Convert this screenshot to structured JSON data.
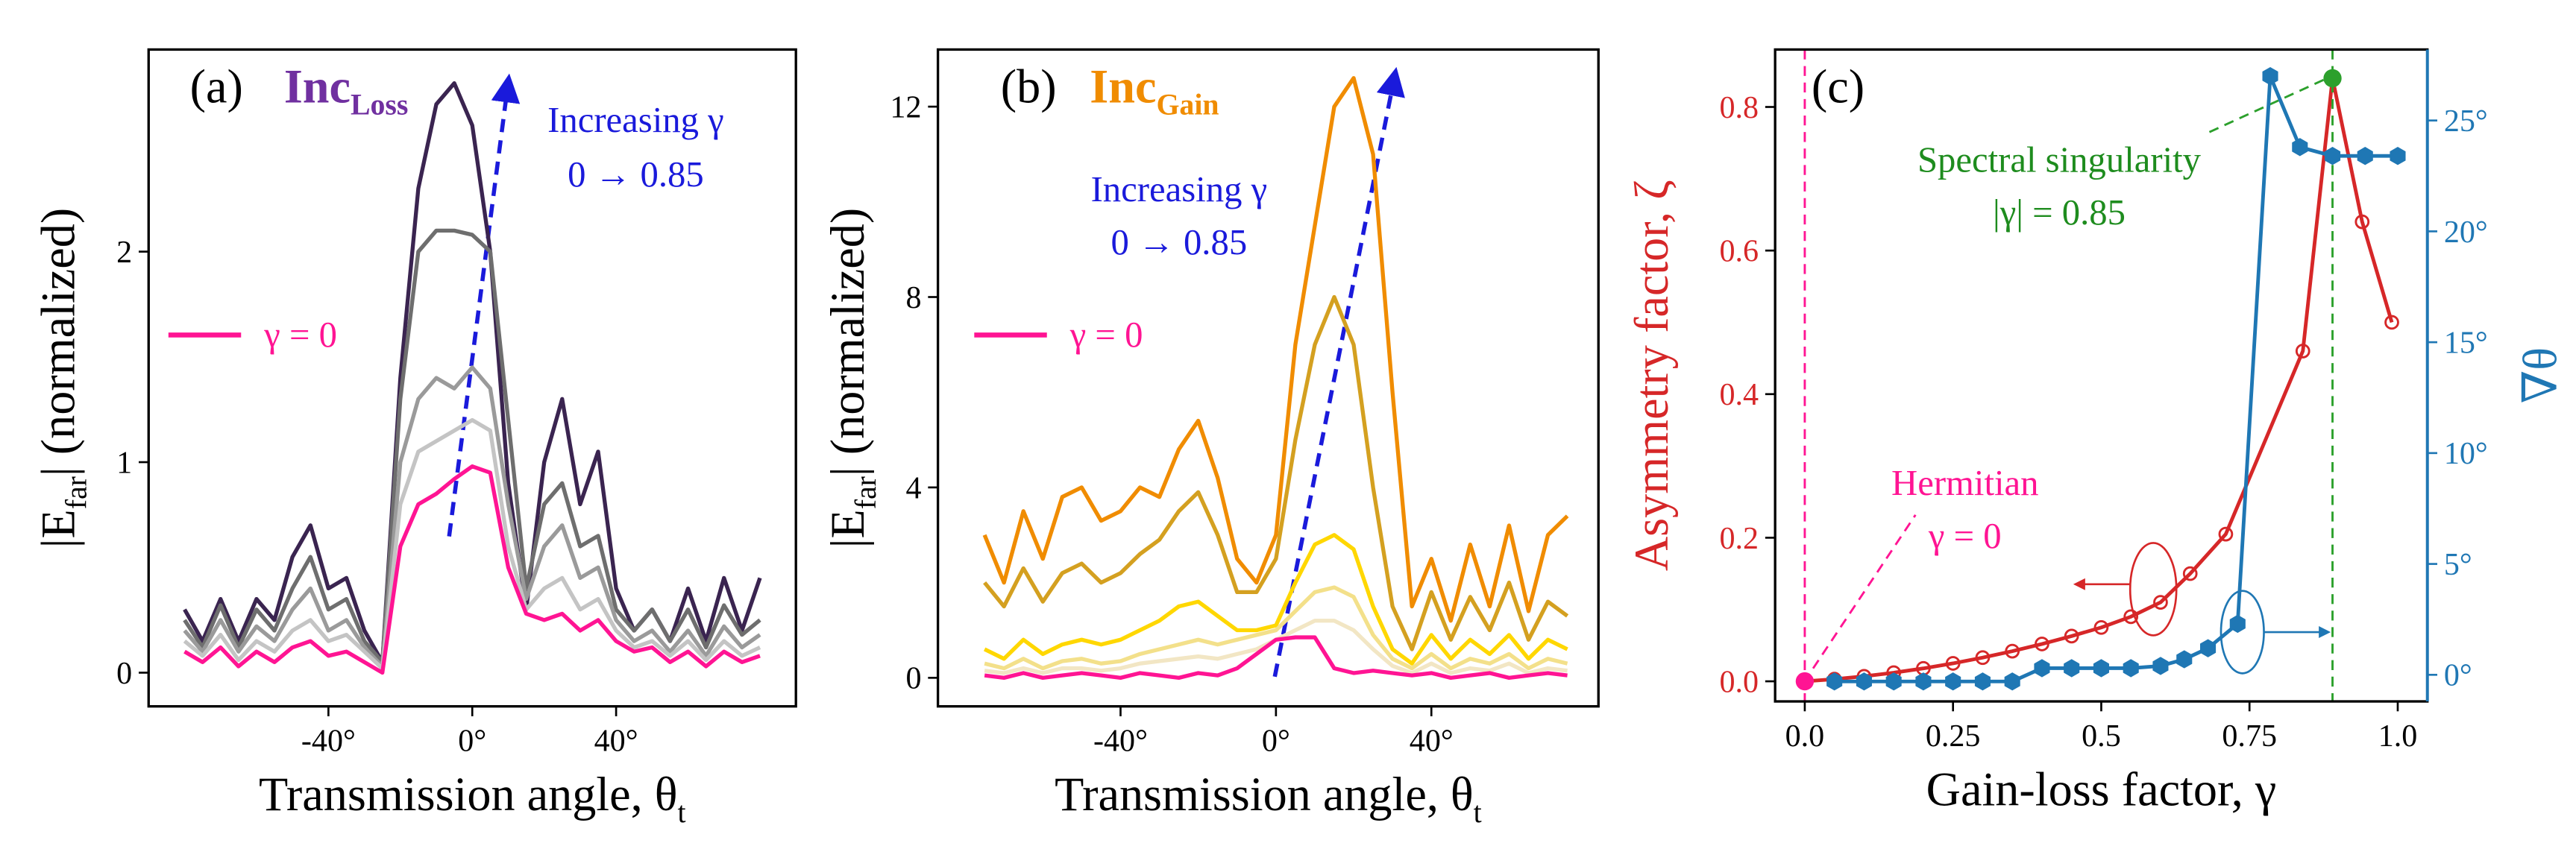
{
  "chart_data": [
    {
      "type": "line",
      "label": "(a)",
      "title": {
        "text": "Inc",
        "sub": "Loss"
      },
      "title_color": "#7030a0",
      "xlabel": {
        "text": "Transmission angle, θ",
        "sub": "t"
      },
      "ylabel": {
        "text": "|E",
        "sub": "far",
        "after": "| (normalized)"
      },
      "annotations": [
        {
          "text": "Increasing γ",
          "color": "#1a1adb"
        },
        {
          "text": "0 → 0.85",
          "color": "#1a1adb"
        }
      ],
      "xlim": [
        -90,
        90
      ],
      "ylim": [
        -0.16,
        2.96
      ],
      "xticks": [
        {
          "value": -40,
          "label": "-40°"
        },
        {
          "value": 0,
          "label": "0°"
        },
        {
          "value": 40,
          "label": "40°"
        }
      ],
      "yticks": [
        0,
        1,
        2
      ],
      "x": [
        -80,
        -75,
        -70,
        -65,
        -60,
        -55,
        -50,
        -45,
        -40,
        -35,
        -30,
        -25,
        -20,
        -15,
        -10,
        -5,
        0,
        5,
        10,
        15,
        20,
        25,
        30,
        35,
        40,
        45,
        50,
        55,
        60,
        65,
        70,
        75,
        80
      ],
      "series": [
        {
          "color": "#3a2450",
          "values": [
            0.3,
            0.15,
            0.35,
            0.15,
            0.35,
            0.25,
            0.55,
            0.7,
            0.4,
            0.45,
            0.2,
            0.05,
            1.4,
            2.3,
            2.7,
            2.8,
            2.6,
            2.0,
            0.9,
            0.3,
            1.0,
            1.3,
            0.8,
            1.05,
            0.4,
            0.2,
            0.3,
            0.15,
            0.4,
            0.15,
            0.45,
            0.2,
            0.45
          ]
        },
        {
          "color": "#6e6e6e",
          "values": [
            0.25,
            0.12,
            0.32,
            0.12,
            0.3,
            0.2,
            0.4,
            0.55,
            0.3,
            0.35,
            0.15,
            0.05,
            1.3,
            2.0,
            2.1,
            2.1,
            2.08,
            2.0,
            1.2,
            0.4,
            0.8,
            0.9,
            0.6,
            0.65,
            0.3,
            0.2,
            0.3,
            0.15,
            0.3,
            0.12,
            0.32,
            0.18,
            0.25
          ]
        },
        {
          "color": "#9a9a9a",
          "values": [
            0.2,
            0.1,
            0.25,
            0.1,
            0.22,
            0.15,
            0.3,
            0.4,
            0.2,
            0.25,
            0.12,
            0.03,
            1.0,
            1.3,
            1.4,
            1.35,
            1.45,
            1.35,
            0.8,
            0.35,
            0.6,
            0.7,
            0.45,
            0.5,
            0.25,
            0.15,
            0.2,
            0.1,
            0.2,
            0.08,
            0.22,
            0.12,
            0.18
          ]
        },
        {
          "color": "#c4c4c4",
          "values": [
            0.15,
            0.08,
            0.18,
            0.06,
            0.15,
            0.1,
            0.2,
            0.25,
            0.15,
            0.18,
            0.1,
            0.02,
            0.8,
            1.05,
            1.1,
            1.15,
            1.2,
            1.15,
            0.6,
            0.3,
            0.4,
            0.45,
            0.3,
            0.35,
            0.2,
            0.12,
            0.15,
            0.08,
            0.15,
            0.06,
            0.15,
            0.08,
            0.12
          ]
        },
        {
          "name": "γ = 0",
          "color": "#ff1493",
          "values": [
            0.1,
            0.05,
            0.12,
            0.03,
            0.1,
            0.05,
            0.12,
            0.15,
            0.08,
            0.1,
            0.05,
            0.0,
            0.6,
            0.8,
            0.85,
            0.92,
            0.98,
            0.95,
            0.5,
            0.28,
            0.25,
            0.28,
            0.2,
            0.25,
            0.15,
            0.1,
            0.12,
            0.05,
            0.1,
            0.03,
            0.1,
            0.05,
            0.08
          ]
        }
      ]
    },
    {
      "type": "line",
      "label": "(b)",
      "title": {
        "text": "Inc",
        "sub": "Gain"
      },
      "title_color": "#f08c00",
      "xlabel": {
        "text": "Transmission angle, θ",
        "sub": "t"
      },
      "ylabel": {
        "text": "|E",
        "sub": "far",
        "after": "| (normalized)"
      },
      "annotations": [
        {
          "text": "Increasing γ",
          "color": "#1a1adb"
        },
        {
          "text": "0 → 0.85",
          "color": "#1a1adb"
        }
      ],
      "xlim": [
        -87,
        83
      ],
      "ylim": [
        -0.6,
        13.2
      ],
      "xticks": [
        {
          "value": -40,
          "label": "-40°"
        },
        {
          "value": 0,
          "label": "0°"
        },
        {
          "value": 40,
          "label": "40°"
        }
      ],
      "yticks": [
        0,
        4,
        8,
        12
      ],
      "x": [
        -75,
        -70,
        -65,
        -60,
        -55,
        -50,
        -45,
        -40,
        -35,
        -30,
        -25,
        -20,
        -15,
        -10,
        -5,
        0,
        5,
        10,
        15,
        20,
        25,
        30,
        35,
        40,
        45,
        50,
        55,
        60,
        65,
        70,
        75
      ],
      "series": [
        {
          "color": "#f08c00",
          "values": [
            3.0,
            2.0,
            3.5,
            2.5,
            3.8,
            4.0,
            3.3,
            3.5,
            4.0,
            3.8,
            4.8,
            5.4,
            4.2,
            2.5,
            2.0,
            3.0,
            7.0,
            9.5,
            12.0,
            12.6,
            11.0,
            6.0,
            1.5,
            2.5,
            1.2,
            2.8,
            1.5,
            3.2,
            1.4,
            3.0,
            3.4
          ]
        },
        {
          "color": "#d4a020",
          "values": [
            2.0,
            1.5,
            2.3,
            1.6,
            2.2,
            2.4,
            2.0,
            2.2,
            2.6,
            2.9,
            3.5,
            3.9,
            3.0,
            1.8,
            1.8,
            2.5,
            5.0,
            7.0,
            8.0,
            7.0,
            4.0,
            1.5,
            0.6,
            1.8,
            0.8,
            1.7,
            1.0,
            2.0,
            0.8,
            1.6,
            1.3
          ]
        },
        {
          "color": "#ffd700",
          "values": [
            0.6,
            0.4,
            0.8,
            0.5,
            0.7,
            0.8,
            0.7,
            0.8,
            1.0,
            1.2,
            1.5,
            1.6,
            1.3,
            1.0,
            1.0,
            1.1,
            2.0,
            2.8,
            3.0,
            2.7,
            1.5,
            0.6,
            0.3,
            0.9,
            0.4,
            0.8,
            0.5,
            0.9,
            0.4,
            0.8,
            0.6
          ]
        },
        {
          "color": "#f3e08a",
          "values": [
            0.3,
            0.2,
            0.4,
            0.2,
            0.35,
            0.4,
            0.3,
            0.35,
            0.5,
            0.6,
            0.7,
            0.8,
            0.7,
            0.8,
            0.9,
            1.0,
            1.4,
            1.8,
            1.9,
            1.7,
            0.9,
            0.4,
            0.2,
            0.5,
            0.2,
            0.4,
            0.3,
            0.5,
            0.2,
            0.4,
            0.3
          ]
        },
        {
          "color": "#f2e6c4",
          "values": [
            0.15,
            0.1,
            0.2,
            0.1,
            0.2,
            0.2,
            0.15,
            0.2,
            0.3,
            0.35,
            0.4,
            0.45,
            0.4,
            0.5,
            0.6,
            0.8,
            1.0,
            1.2,
            1.2,
            1.0,
            0.6,
            0.25,
            0.1,
            0.3,
            0.1,
            0.2,
            0.15,
            0.3,
            0.1,
            0.2,
            0.15
          ]
        },
        {
          "name": "γ = 0",
          "color": "#ff1493",
          "values": [
            0.05,
            0.0,
            0.1,
            0.0,
            0.05,
            0.1,
            0.05,
            0.0,
            0.1,
            0.05,
            0.0,
            0.1,
            0.05,
            0.2,
            0.5,
            0.8,
            0.85,
            0.85,
            0.2,
            0.1,
            0.15,
            0.1,
            0.05,
            0.1,
            0.0,
            0.05,
            0.1,
            0.0,
            0.05,
            0.1,
            0.05
          ]
        }
      ]
    },
    {
      "type": "line",
      "label": "(c)",
      "xlabel": "Gain-loss factor, γ",
      "ylabel": "Asymmetry factor, ζ",
      "y2label": "∇θ",
      "y_color": "#d62728",
      "y2_color": "#1f77b4",
      "annotations": [
        {
          "text": "Spectral singularity",
          "color": "#1e8c1e"
        },
        {
          "text": "|γ| = 0.85",
          "color": "#1e8c1e"
        },
        {
          "text": "Hermitian",
          "color": "#ff1493"
        },
        {
          "text": "γ = 0",
          "color": "#ff1493"
        }
      ],
      "xlim": [
        -0.05,
        1.05
      ],
      "ylim": [
        -0.028,
        0.88
      ],
      "y2lim": [
        -1.2,
        28.2
      ],
      "xticks": [
        {
          "value": 0,
          "label": "0.0"
        },
        0.25,
        0.5,
        0.75,
        {
          "value": 1,
          "label": "1.0"
        }
      ],
      "yticks": [
        {
          "value": 0,
          "label": "0.0"
        },
        0.2,
        0.4,
        0.6,
        0.8
      ],
      "y2ticks": [
        {
          "value": 0,
          "label": "0°"
        },
        {
          "value": 5,
          "label": "5°"
        },
        {
          "value": 10,
          "label": "10°"
        },
        {
          "value": 15,
          "label": "15°"
        },
        {
          "value": 20,
          "label": "20°"
        },
        {
          "value": 25,
          "label": "25°"
        }
      ],
      "series": [
        {
          "color": "#d62728",
          "marker": "open-circle",
          "x": [
            0,
            0.05,
            0.1,
            0.15,
            0.2,
            0.25,
            0.3,
            0.35,
            0.4,
            0.45,
            0.5,
            0.55,
            0.6,
            0.65,
            0.71,
            0.84,
            0.89,
            0.94,
            0.99
          ],
          "values": [
            0,
            0.003,
            0.007,
            0.012,
            0.018,
            0.025,
            0.033,
            0.042,
            0.052,
            0.063,
            0.075,
            0.09,
            0.11,
            0.15,
            0.205,
            0.46,
            0.84,
            0.64,
            0.5
          ],
          "highlight_points": [
            {
              "point": 0,
              "color": "#ff1493"
            },
            {
              "point": 16,
              "color": "#2ca02c"
            }
          ]
        },
        {
          "color": "#1f77b4",
          "marker": "filled-hexagon",
          "axis": "y2",
          "x": [
            0.05,
            0.1,
            0.15,
            0.2,
            0.25,
            0.3,
            0.35,
            0.4,
            0.45,
            0.5,
            0.55,
            0.6,
            0.64,
            0.68,
            0.73,
            0.785,
            0.835,
            0.89,
            0.945,
            1.0
          ],
          "values": [
            -0.3,
            -0.3,
            -0.3,
            -0.3,
            -0.3,
            -0.3,
            -0.3,
            0.3,
            0.3,
            0.3,
            0.3,
            0.4,
            0.7,
            1.2,
            2.3,
            27.0,
            23.8,
            23.4,
            23.4,
            23.4
          ]
        }
      ]
    }
  ]
}
